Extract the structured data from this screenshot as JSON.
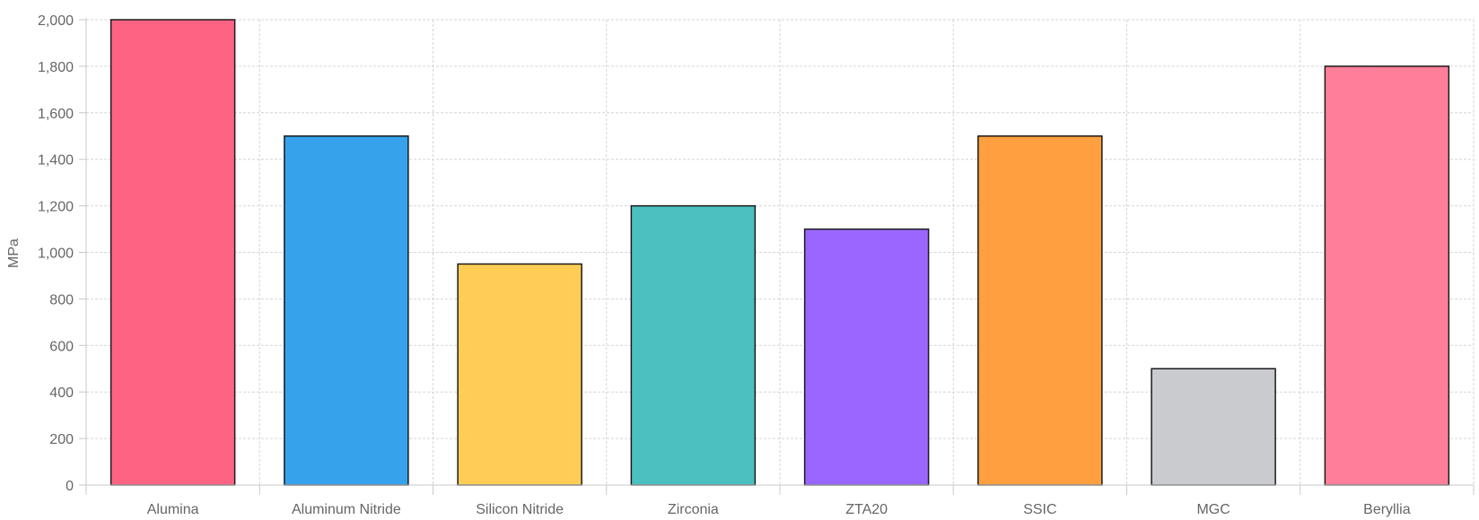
{
  "chart_data": {
    "type": "bar",
    "title": "",
    "xlabel": "",
    "ylabel": "MPa",
    "ylim": [
      0,
      2000
    ],
    "y_tick_step": 200,
    "grid": true,
    "legend": "none",
    "categories": [
      "Alumina",
      "Aluminum Nitride",
      "Silicon Nitride",
      "Zirconia",
      "ZTA20",
      "SSIC",
      "MGC",
      "Beryllia"
    ],
    "values": [
      2000,
      1500,
      950,
      1200,
      1100,
      1500,
      500,
      1800
    ],
    "colors": [
      "#ff6384",
      "#36a2eb",
      "#ffcd56",
      "#4bc0c0",
      "#9966ff",
      "#ff9f40",
      "#c9cbcf",
      "#ff7f9a"
    ]
  }
}
